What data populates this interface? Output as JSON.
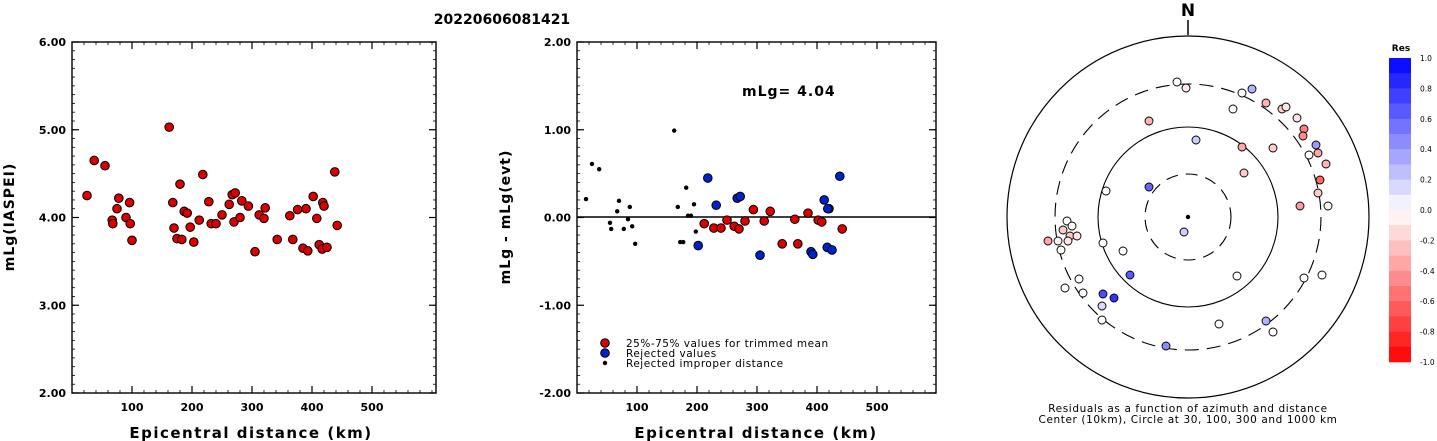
{
  "title": "20220606081421",
  "chart_data": [
    {
      "type": "scatter",
      "xlabel": "Epicentral distance (km)",
      "ylabel": "mLg(IASPEI)",
      "xlim": [
        0,
        600
      ],
      "ylim": [
        2.0,
        6.0
      ],
      "x_ticks": [
        "100",
        "200",
        "300",
        "400",
        "500"
      ],
      "y_ticks": [
        "2.00",
        "3.00",
        "4.00",
        "5.00",
        "6.00"
      ],
      "points": [
        [
          25,
          4.25
        ],
        [
          37,
          4.65
        ],
        [
          55,
          4.59
        ],
        [
          67,
          3.97
        ],
        [
          68,
          3.93
        ],
        [
          75,
          4.1
        ],
        [
          78,
          4.22
        ],
        [
          90,
          4.0
        ],
        [
          96,
          4.17
        ],
        [
          97,
          3.93
        ],
        [
          100,
          3.74
        ],
        [
          162,
          5.03
        ],
        [
          168,
          4.17
        ],
        [
          170,
          3.88
        ],
        [
          175,
          3.76
        ],
        [
          180,
          4.38
        ],
        [
          183,
          3.75
        ],
        [
          187,
          4.07
        ],
        [
          192,
          4.05
        ],
        [
          197,
          3.89
        ],
        [
          203,
          3.72
        ],
        [
          212,
          3.97
        ],
        [
          218,
          4.49
        ],
        [
          228,
          4.18
        ],
        [
          232,
          3.93
        ],
        [
          240,
          3.93
        ],
        [
          250,
          4.03
        ],
        [
          262,
          4.15
        ],
        [
          267,
          4.26
        ],
        [
          270,
          3.95
        ],
        [
          272,
          4.28
        ],
        [
          280,
          4.0
        ],
        [
          283,
          4.19
        ],
        [
          294,
          4.13
        ],
        [
          305,
          3.61
        ],
        [
          312,
          4.03
        ],
        [
          320,
          3.99
        ],
        [
          322,
          4.11
        ],
        [
          342,
          3.75
        ],
        [
          363,
          4.02
        ],
        [
          368,
          3.75
        ],
        [
          376,
          4.09
        ],
        [
          385,
          3.65
        ],
        [
          390,
          4.1
        ],
        [
          393,
          3.62
        ],
        [
          402,
          4.24
        ],
        [
          408,
          3.99
        ],
        [
          412,
          3.69
        ],
        [
          417,
          3.64
        ],
        [
          418,
          4.17
        ],
        [
          420,
          4.13
        ],
        [
          425,
          3.66
        ],
        [
          438,
          4.52
        ],
        [
          442,
          3.91
        ]
      ]
    },
    {
      "type": "scatter",
      "xlabel": "Epicentral distance (km)",
      "ylabel": "mLg - mLg(evt)",
      "xlim": [
        0,
        600
      ],
      "ylim": [
        -2.0,
        2.0
      ],
      "x_ticks": [
        "100",
        "200",
        "300",
        "400",
        "500"
      ],
      "y_ticks": [
        "-2.00",
        "-1.00",
        "0.00",
        "1.00",
        "2.00"
      ],
      "annotation": "mLg= 4.04",
      "reference_line": 0.0,
      "legend": [
        {
          "label": "25%-75% values for trimmed mean",
          "color": "#dd0000"
        },
        {
          "label": "Rejected values",
          "color": "#0022cc"
        },
        {
          "label": "Rejected improper distance",
          "color": "#000000"
        }
      ],
      "series": [
        {
          "name": "25%-75% values for trimmed mean",
          "color": "#dd0000",
          "marker": "large",
          "points": [
            [
              212,
              -0.07
            ],
            [
              228,
              -0.12
            ],
            [
              240,
              -0.12
            ],
            [
              250,
              -0.03
            ],
            [
              262,
              -0.1
            ],
            [
              270,
              -0.13
            ],
            [
              280,
              -0.04
            ],
            [
              294,
              0.09
            ],
            [
              312,
              -0.04
            ],
            [
              322,
              0.07
            ],
            [
              342,
              -0.3
            ],
            [
              363,
              -0.02
            ],
            [
              368,
              -0.3
            ],
            [
              385,
              0.05
            ],
            [
              402,
              -0.03
            ],
            [
              408,
              -0.05
            ],
            [
              420,
              0.1
            ],
            [
              442,
              -0.13
            ]
          ]
        },
        {
          "name": "Rejected values",
          "color": "#0022cc",
          "marker": "large",
          "points": [
            [
              202,
              -0.32
            ],
            [
              218,
              0.45
            ],
            [
              232,
              0.14
            ],
            [
              267,
              0.22
            ],
            [
              272,
              0.24
            ],
            [
              305,
              -0.43
            ],
            [
              390,
              -0.39
            ],
            [
              393,
              -0.42
            ],
            [
              412,
              0.2
            ],
            [
              417,
              -0.34
            ],
            [
              418,
              0.1
            ],
            [
              425,
              -0.37
            ],
            [
              438,
              0.47
            ]
          ]
        },
        {
          "name": "Rejected improper distance",
          "color": "#000000",
          "marker": "small",
          "points": [
            [
              15,
              0.21
            ],
            [
              25,
              0.61
            ],
            [
              37,
              0.55
            ],
            [
              55,
              -0.06
            ],
            [
              57,
              -0.13
            ],
            [
              67,
              0.07
            ],
            [
              70,
              0.19
            ],
            [
              78,
              -0.13
            ],
            [
              85,
              -0.02
            ],
            [
              88,
              0.12
            ],
            [
              92,
              -0.1
            ],
            [
              97,
              -0.3
            ],
            [
              162,
              0.99
            ],
            [
              168,
              0.12
            ],
            [
              172,
              -0.28
            ],
            [
              177,
              -0.28
            ],
            [
              182,
              0.34
            ],
            [
              185,
              0.02
            ],
            [
              190,
              0.02
            ],
            [
              195,
              0.15
            ],
            [
              198,
              -0.16
            ]
          ]
        }
      ]
    },
    {
      "type": "polar-scatter",
      "north_label": "N",
      "caption_line1": "Residuals as a function of azimuth and distance",
      "caption_line2": "Center (10km), Circle at 30, 100, 300 and 1000 km",
      "colorbar_title": "Res",
      "colorbar_ticks": [
        "1.0",
        "0.8",
        "0.6",
        "0.4",
        "0.2",
        "0.0",
        "-0.2",
        "-0.4",
        "-0.6",
        "-0.8",
        "-1.0"
      ],
      "points_residual": [
        [
          1177,
          82,
          0.0
        ],
        [
          1186,
          88,
          -0.08
        ],
        [
          1242,
          93,
          0.0
        ],
        [
          1252,
          89,
          0.3
        ],
        [
          1266,
          103,
          -0.3
        ],
        [
          1282,
          109,
          -0.2
        ],
        [
          1286,
          107,
          -0.1
        ],
        [
          1297,
          118,
          -0.1
        ],
        [
          1304,
          129,
          -0.5
        ],
        [
          1303,
          136,
          -0.45
        ],
        [
          1316,
          145,
          0.4
        ],
        [
          1318,
          153,
          -0.35
        ],
        [
          1309,
          155,
          0.0
        ],
        [
          1233,
          109,
          0.0
        ],
        [
          1149,
          121,
          -0.3
        ],
        [
          1196,
          140,
          0.2
        ],
        [
          1242,
          147,
          -0.35
        ],
        [
          1273,
          148,
          -0.2
        ],
        [
          1326,
          164,
          -0.3
        ],
        [
          1244,
          173,
          -0.2
        ],
        [
          1320,
          180,
          -0.6
        ],
        [
          1106,
          191,
          0.0
        ],
        [
          1149,
          187,
          0.6
        ],
        [
          1318,
          193,
          -0.2
        ],
        [
          1328,
          206,
          -0.05
        ],
        [
          1300,
          206,
          -0.4
        ],
        [
          1067,
          221,
          0.0
        ],
        [
          1072,
          226,
          0.0
        ],
        [
          1063,
          230,
          -0.2
        ],
        [
          1070,
          236,
          -0.2
        ],
        [
          1077,
          236,
          -0.1
        ],
        [
          1048,
          241,
          -0.35
        ],
        [
          1068,
          241,
          -0.1
        ],
        [
          1058,
          241,
          -0.05
        ],
        [
          1061,
          250,
          0.0
        ],
        [
          1103,
          243,
          0.0
        ],
        [
          1123,
          251,
          0.0
        ],
        [
          1184,
          232,
          0.2
        ],
        [
          1130,
          275,
          0.65
        ],
        [
          1237,
          276,
          0.0
        ],
        [
          1322,
          275,
          0.0
        ],
        [
          1304,
          278,
          0.0
        ],
        [
          1079,
          279,
          0.0
        ],
        [
          1065,
          288,
          0.0
        ],
        [
          1103,
          294,
          0.7
        ],
        [
          1083,
          293,
          0.0
        ],
        [
          1114,
          298,
          0.8
        ],
        [
          1102,
          306,
          0.15
        ],
        [
          1102,
          320,
          0.0
        ],
        [
          1266,
          321,
          0.3
        ],
        [
          1219,
          324,
          0.0
        ],
        [
          1273,
          332,
          0.0
        ],
        [
          1166,
          346,
          0.45
        ]
      ]
    }
  ]
}
